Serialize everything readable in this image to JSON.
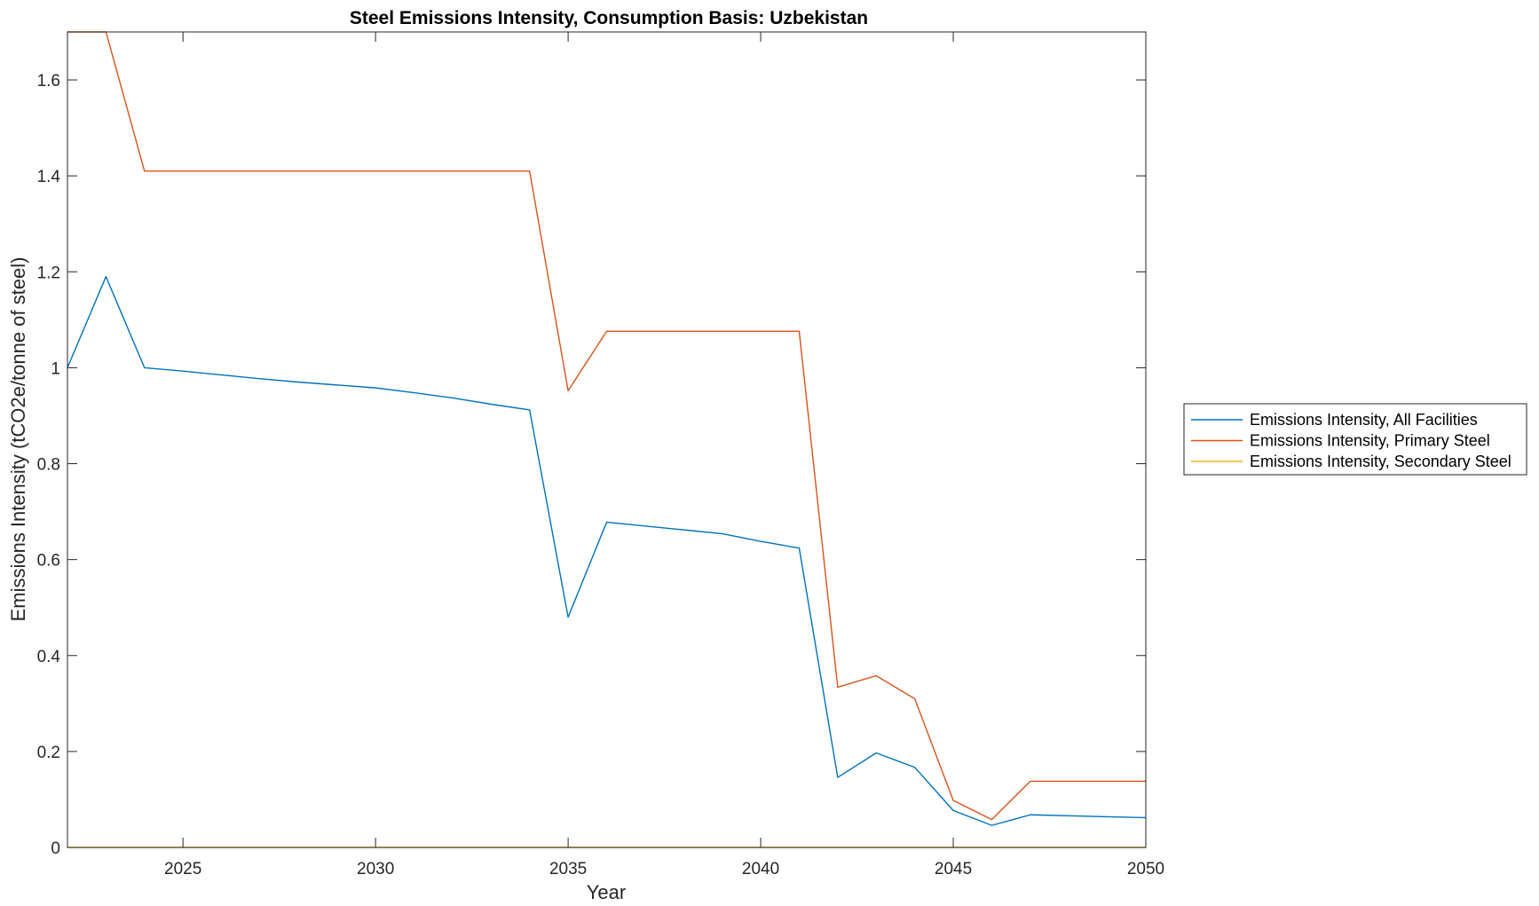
{
  "chart_data": {
    "type": "line",
    "title": "Steel Emissions Intensity, Consumption Basis: Uzbekistan",
    "xlabel": "Year",
    "ylabel": "Emissions Intensity (tCO2e/tonne of steel)",
    "xlim": [
      2022,
      2050
    ],
    "ylim": [
      0,
      1.7
    ],
    "x_ticks": [
      2025,
      2030,
      2035,
      2040,
      2045,
      2050
    ],
    "y_ticks": [
      0,
      0.2,
      0.4,
      0.6,
      0.8,
      1,
      1.2,
      1.4,
      1.6
    ],
    "x_tick_labels": [
      "2025",
      "2030",
      "2035",
      "2040",
      "2045",
      "2050"
    ],
    "y_tick_labels": [
      "0",
      "0.2",
      "0.4",
      "0.6",
      "0.8",
      "1",
      "1.2",
      "1.4",
      "1.6"
    ],
    "grid": false,
    "legend_position": "outside-right",
    "x": [
      2022,
      2023,
      2024,
      2025,
      2026,
      2027,
      2028,
      2029,
      2030,
      2031,
      2032,
      2033,
      2034,
      2035,
      2036,
      2037,
      2038,
      2039,
      2040,
      2041,
      2042,
      2043,
      2044,
      2045,
      2046,
      2047,
      2048,
      2049,
      2050
    ],
    "series": [
      {
        "name": "Emissions Intensity, All Facilities",
        "color": "#0072BD",
        "values": [
          1.0,
          1.19,
          1.0,
          0.993,
          0.985,
          0.977,
          0.97,
          0.964,
          0.958,
          0.948,
          0.937,
          0.924,
          0.912,
          0.48,
          0.678,
          0.67,
          0.662,
          0.654,
          0.638,
          0.624,
          0.146,
          0.197,
          0.167,
          0.077,
          0.046,
          0.068,
          0.066,
          0.064,
          0.062
        ]
      },
      {
        "name": "Emissions Intensity, Primary Steel",
        "color": "#D95319",
        "values": [
          1.7,
          1.7,
          1.41,
          1.41,
          1.41,
          1.41,
          1.41,
          1.41,
          1.41,
          1.41,
          1.41,
          1.41,
          1.41,
          0.952,
          1.076,
          1.076,
          1.076,
          1.076,
          1.076,
          1.076,
          0.334,
          0.358,
          0.31,
          0.098,
          0.058,
          0.138,
          0.138,
          0.138,
          0.138
        ]
      },
      {
        "name": "Emissions Intensity, Secondary Steel",
        "color": "#EDB120",
        "values": [
          0,
          0,
          0,
          0,
          0,
          0,
          0,
          0,
          0,
          0,
          0,
          0,
          0,
          0,
          0,
          0,
          0,
          0,
          0,
          0,
          0,
          0,
          0,
          0,
          0,
          0,
          0,
          0,
          0
        ]
      }
    ]
  }
}
